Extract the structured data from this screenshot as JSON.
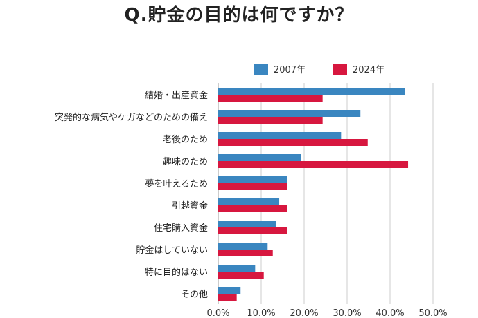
{
  "title": "Q.貯金の目的は何ですか？",
  "colors": {
    "series_2007": "#3a86c0",
    "series_2024": "#d7173f",
    "grid": "#cccccc"
  },
  "chart_data": {
    "type": "bar",
    "orientation": "horizontal",
    "categories": [
      "結婚・出産資金",
      "突発的な病気やケガなどのための備え",
      "老後のため",
      "趣味のため",
      "夢を叶えるため",
      "引越資金",
      "住宅購入資金",
      "貯金はしていない",
      "特に目的はない",
      "その他"
    ],
    "series": [
      {
        "name": "2007年",
        "values": [
          43.4,
          33.1,
          28.6,
          19.3,
          16.0,
          14.2,
          13.5,
          11.5,
          8.6,
          5.2
        ]
      },
      {
        "name": "2024年",
        "values": [
          24.3,
          24.3,
          34.8,
          44.2,
          16.0,
          16.0,
          16.0,
          12.7,
          10.6,
          4.3
        ]
      }
    ],
    "xlim": [
      0,
      50
    ],
    "ticks": [
      "0.0%",
      "10.0%",
      "20.0%",
      "30.0%",
      "40.0%",
      "50.0%"
    ],
    "legend_position": "top-right",
    "grid": true
  }
}
